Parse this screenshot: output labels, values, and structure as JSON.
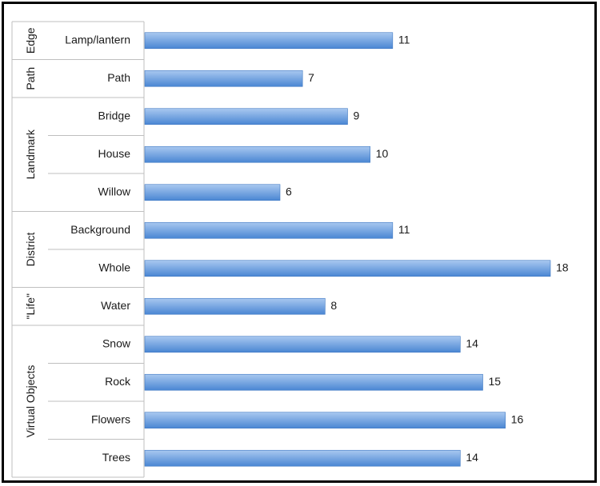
{
  "chart_data": {
    "type": "bar",
    "orientation": "horizontal",
    "groups": [
      {
        "name": "Edge",
        "categories": [
          "Lamp/lantern"
        ]
      },
      {
        "name": "Path",
        "categories": [
          "Path"
        ]
      },
      {
        "name": "Landmark",
        "categories": [
          "Bridge",
          "House",
          "Willow"
        ]
      },
      {
        "name": "District",
        "categories": [
          "Background",
          "Whole"
        ]
      },
      {
        "name": "\"Life\"",
        "categories": [
          "Water"
        ]
      },
      {
        "name": "Virtual Objects",
        "categories": [
          "Snow",
          "Rock",
          "Flowers",
          "Trees"
        ]
      }
    ],
    "categories": [
      "Lamp/lantern",
      "Path",
      "Bridge",
      "House",
      "Willow",
      "Background",
      "Whole",
      "Water",
      "Snow",
      "Rock",
      "Flowers",
      "Trees"
    ],
    "values": [
      11,
      7,
      9,
      10,
      6,
      11,
      18,
      8,
      14,
      15,
      16,
      14
    ],
    "value_labels": [
      "11",
      "7",
      "9",
      "10",
      "6",
      "11",
      "18",
      "8",
      "14",
      "15",
      "16",
      "14"
    ],
    "xlim": [
      0,
      18
    ],
    "grid": false,
    "legend": "none",
    "colors": {
      "bar_top": "#a9c8f0",
      "bar_bottom": "#4a86d3",
      "bar_edge": "#3f78c2"
    }
  }
}
